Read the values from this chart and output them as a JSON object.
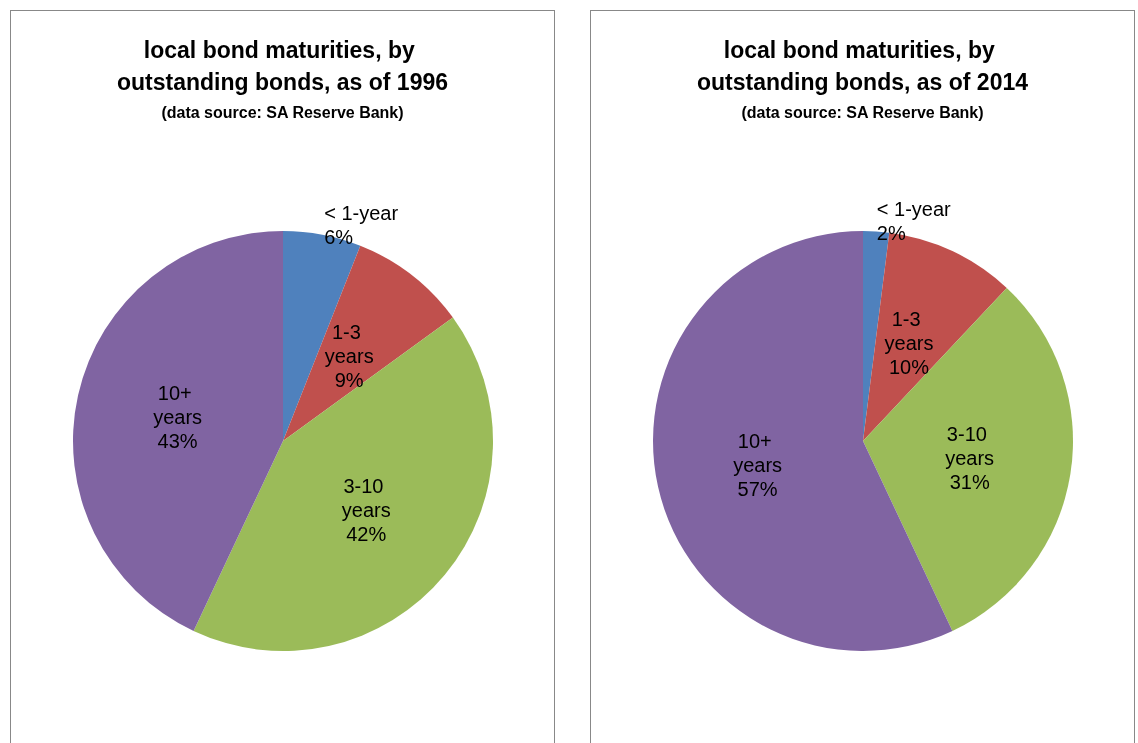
{
  "chart_data": [
    {
      "type": "pie",
      "title": "local bond maturities, by outstanding bonds, as of 1996",
      "subtitle": "(data source: SA Reserve Bank)",
      "categories": [
        "< 1-year",
        "1-3 years",
        "3-10 years",
        "10+ years"
      ],
      "values": [
        6,
        9,
        42,
        43
      ],
      "value_labels": [
        "6%",
        "9%",
        "42%",
        "43%"
      ],
      "colors": [
        "#4f81bd",
        "#c0504d",
        "#9bbb59",
        "#8064a2"
      ]
    },
    {
      "type": "pie",
      "title": "local bond maturities, by outstanding bonds, as of 2014",
      "subtitle": "(data source: SA Reserve Bank)",
      "categories": [
        "< 1-year",
        "1-3 years",
        "3-10 years",
        "10+ years"
      ],
      "values": [
        2,
        10,
        31,
        57
      ],
      "value_labels": [
        "2%",
        "10%",
        "31%",
        "57%"
      ],
      "colors": [
        "#4f81bd",
        "#c0504d",
        "#9bbb59",
        "#8064a2"
      ]
    }
  ]
}
